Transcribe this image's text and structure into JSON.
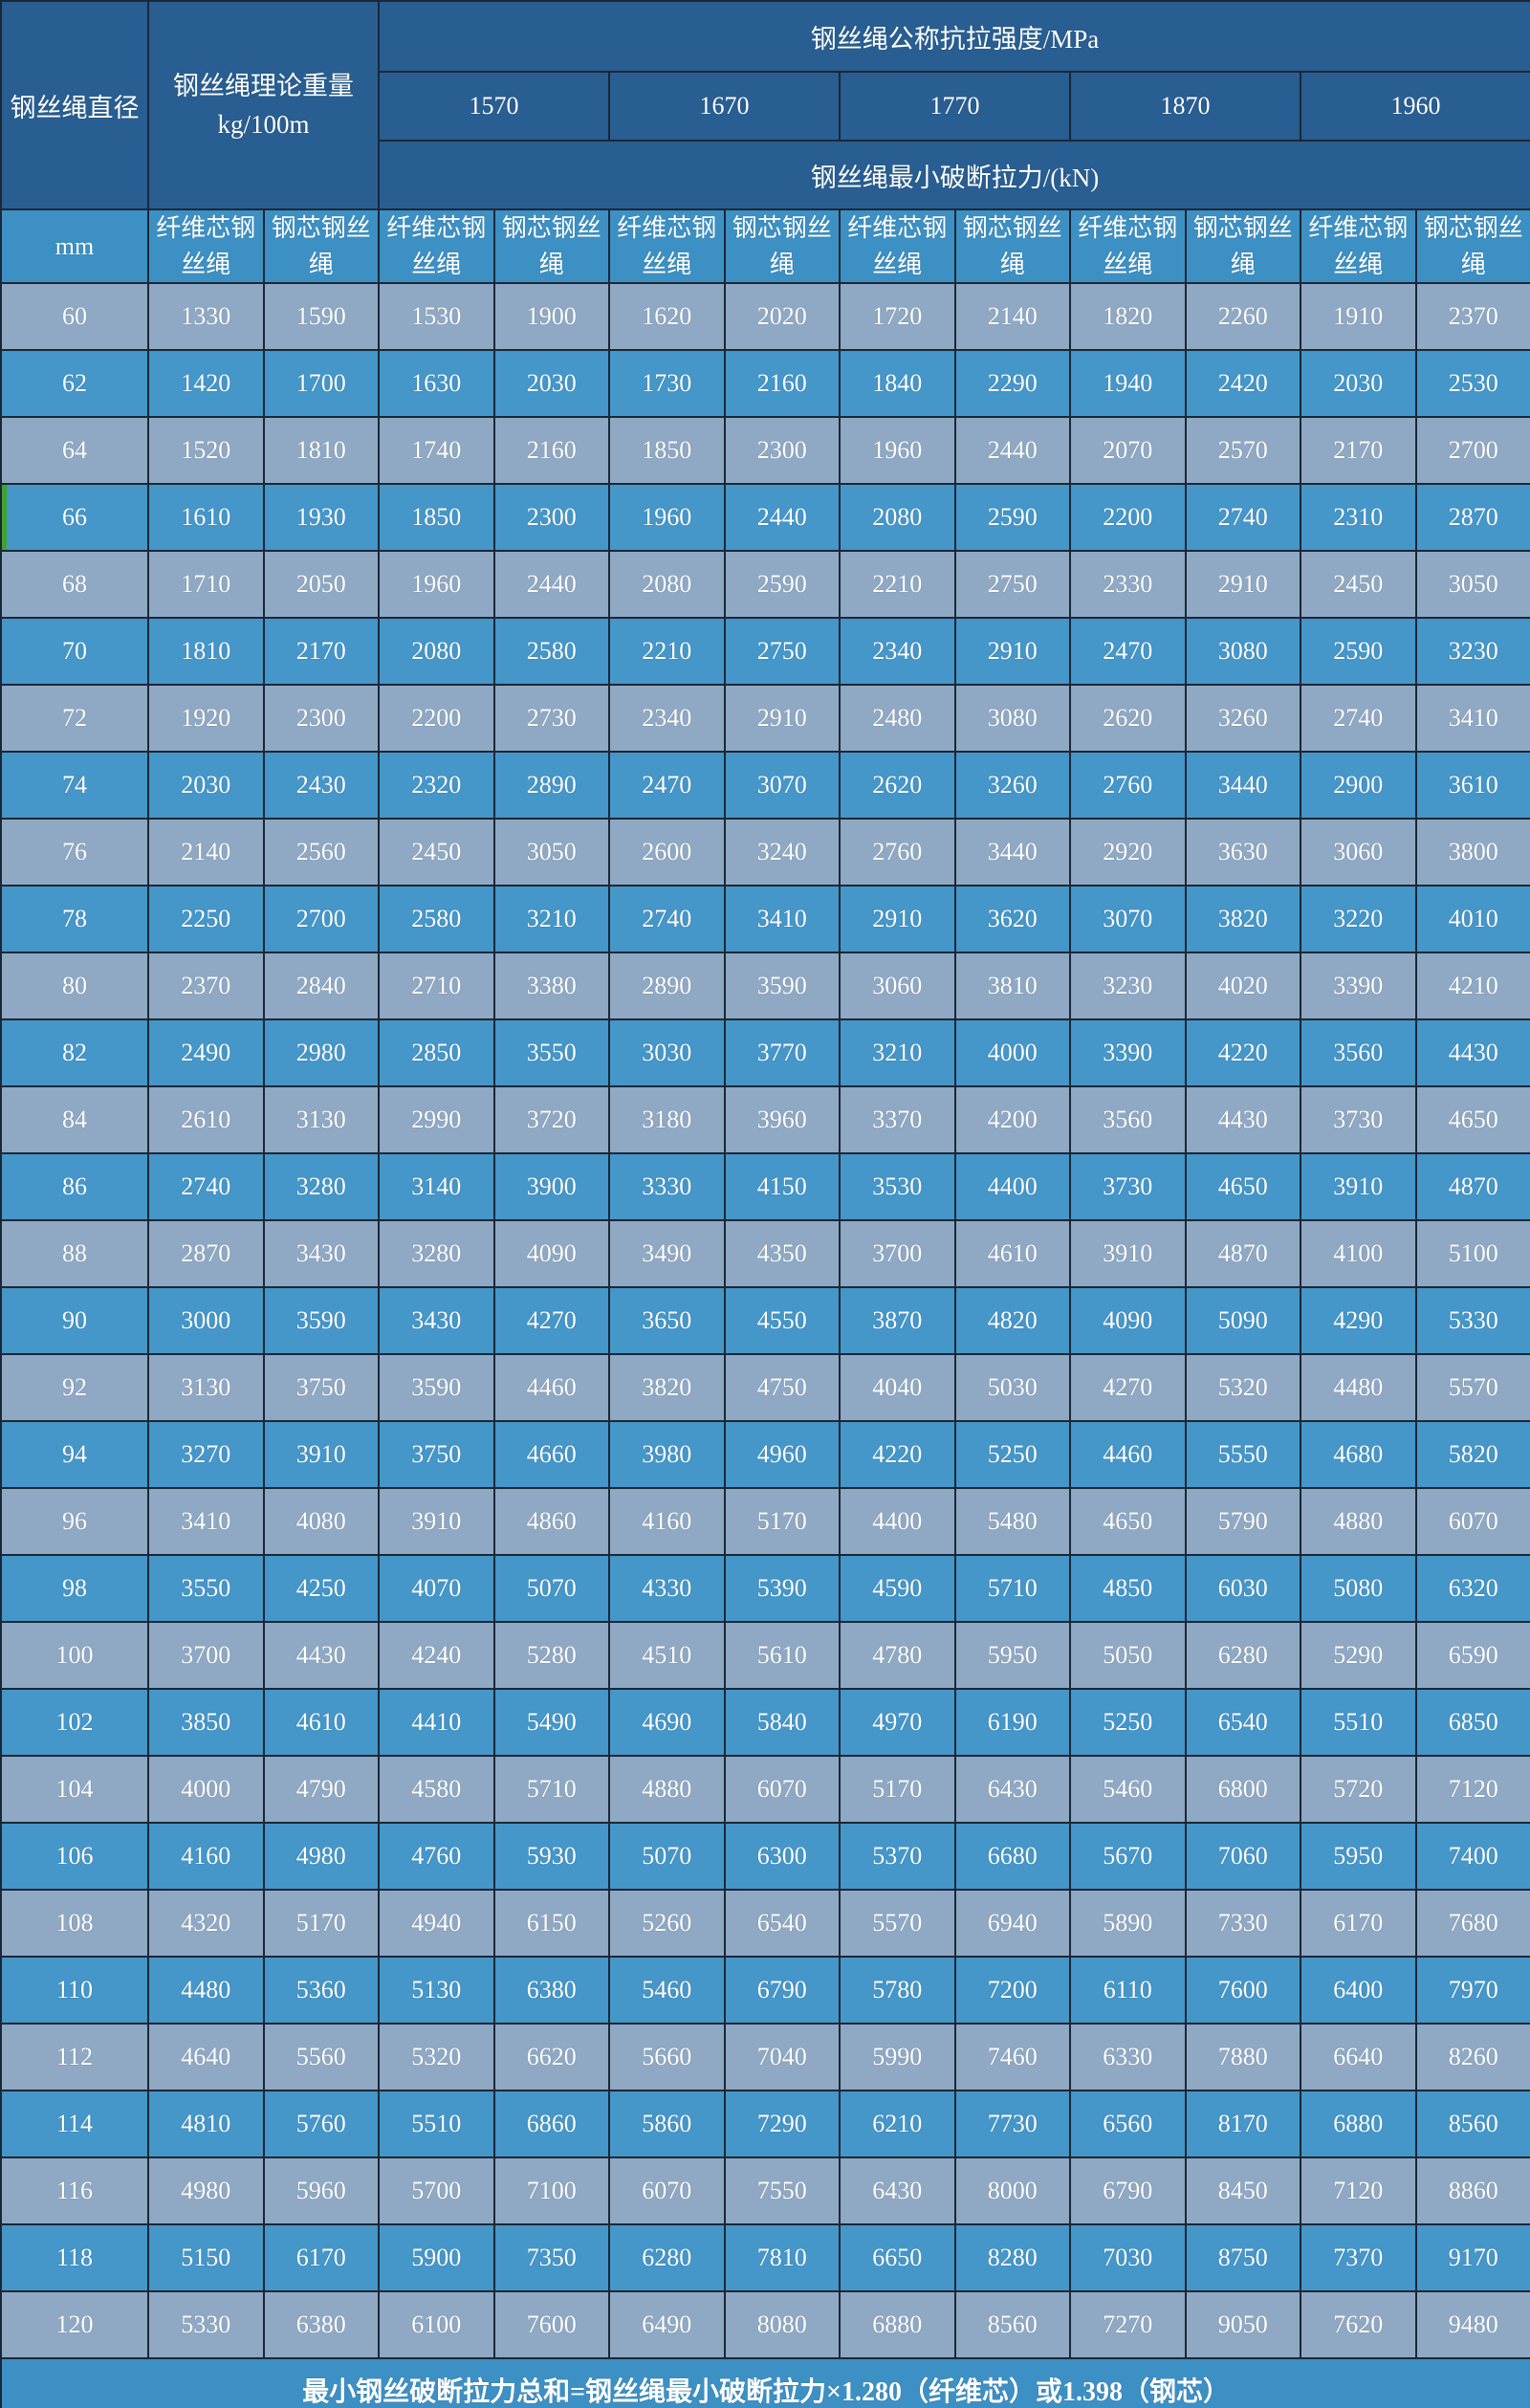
{
  "header": {
    "diameter_label": "钢丝绳直径",
    "diameter_unit": "mm",
    "weight_label": "钢丝绳理论重量",
    "weight_unit": "kg/100m",
    "strength_title": "钢丝绳公称抗拉强度/MPa",
    "strength_grades": [
      "1570",
      "1670",
      "1770",
      "1870",
      "1960"
    ],
    "breaking_title": "钢丝绳最小破断拉力/(kN)",
    "fiber_core_label": "纤维芯钢丝绳",
    "steel_core_label": "钢芯钢丝绳"
  },
  "table": {
    "rows": [
      {
        "d": "60",
        "v": [
          "1330",
          "1590",
          "1530",
          "1900",
          "1620",
          "2020",
          "1720",
          "2140",
          "1820",
          "2260",
          "1910",
          "2370"
        ]
      },
      {
        "d": "62",
        "v": [
          "1420",
          "1700",
          "1630",
          "2030",
          "1730",
          "2160",
          "1840",
          "2290",
          "1940",
          "2420",
          "2030",
          "2530"
        ]
      },
      {
        "d": "64",
        "v": [
          "1520",
          "1810",
          "1740",
          "2160",
          "1850",
          "2300",
          "1960",
          "2440",
          "2070",
          "2570",
          "2170",
          "2700"
        ]
      },
      {
        "d": "66",
        "mark": true,
        "v": [
          "1610",
          "1930",
          "1850",
          "2300",
          "1960",
          "2440",
          "2080",
          "2590",
          "2200",
          "2740",
          "2310",
          "2870"
        ]
      },
      {
        "d": "68",
        "v": [
          "1710",
          "2050",
          "1960",
          "2440",
          "2080",
          "2590",
          "2210",
          "2750",
          "2330",
          "2910",
          "2450",
          "3050"
        ]
      },
      {
        "d": "70",
        "v": [
          "1810",
          "2170",
          "2080",
          "2580",
          "2210",
          "2750",
          "2340",
          "2910",
          "2470",
          "3080",
          "2590",
          "3230"
        ]
      },
      {
        "d": "72",
        "v": [
          "1920",
          "2300",
          "2200",
          "2730",
          "2340",
          "2910",
          "2480",
          "3080",
          "2620",
          "3260",
          "2740",
          "3410"
        ]
      },
      {
        "d": "74",
        "v": [
          "2030",
          "2430",
          "2320",
          "2890",
          "2470",
          "3070",
          "2620",
          "3260",
          "2760",
          "3440",
          "2900",
          "3610"
        ]
      },
      {
        "d": "76",
        "v": [
          "2140",
          "2560",
          "2450",
          "3050",
          "2600",
          "3240",
          "2760",
          "3440",
          "2920",
          "3630",
          "3060",
          "3800"
        ]
      },
      {
        "d": "78",
        "v": [
          "2250",
          "2700",
          "2580",
          "3210",
          "2740",
          "3410",
          "2910",
          "3620",
          "3070",
          "3820",
          "3220",
          "4010"
        ]
      },
      {
        "d": "80",
        "v": [
          "2370",
          "2840",
          "2710",
          "3380",
          "2890",
          "3590",
          "3060",
          "3810",
          "3230",
          "4020",
          "3390",
          "4210"
        ]
      },
      {
        "d": "82",
        "v": [
          "2490",
          "2980",
          "2850",
          "3550",
          "3030",
          "3770",
          "3210",
          "4000",
          "3390",
          "4220",
          "3560",
          "4430"
        ]
      },
      {
        "d": "84",
        "v": [
          "2610",
          "3130",
          "2990",
          "3720",
          "3180",
          "3960",
          "3370",
          "4200",
          "3560",
          "4430",
          "3730",
          "4650"
        ]
      },
      {
        "d": "86",
        "v": [
          "2740",
          "3280",
          "3140",
          "3900",
          "3330",
          "4150",
          "3530",
          "4400",
          "3730",
          "4650",
          "3910",
          "4870"
        ]
      },
      {
        "d": "88",
        "v": [
          "2870",
          "3430",
          "3280",
          "4090",
          "3490",
          "4350",
          "3700",
          "4610",
          "3910",
          "4870",
          "4100",
          "5100"
        ]
      },
      {
        "d": "90",
        "v": [
          "3000",
          "3590",
          "3430",
          "4270",
          "3650",
          "4550",
          "3870",
          "4820",
          "4090",
          "5090",
          "4290",
          "5330"
        ]
      },
      {
        "d": "92",
        "v": [
          "3130",
          "3750",
          "3590",
          "4460",
          "3820",
          "4750",
          "4040",
          "5030",
          "4270",
          "5320",
          "4480",
          "5570"
        ]
      },
      {
        "d": "94",
        "v": [
          "3270",
          "3910",
          "3750",
          "4660",
          "3980",
          "4960",
          "4220",
          "5250",
          "4460",
          "5550",
          "4680",
          "5820"
        ]
      },
      {
        "d": "96",
        "v": [
          "3410",
          "4080",
          "3910",
          "4860",
          "4160",
          "5170",
          "4400",
          "5480",
          "4650",
          "5790",
          "4880",
          "6070"
        ]
      },
      {
        "d": "98",
        "v": [
          "3550",
          "4250",
          "4070",
          "5070",
          "4330",
          "5390",
          "4590",
          "5710",
          "4850",
          "6030",
          "5080",
          "6320"
        ]
      },
      {
        "d": "100",
        "v": [
          "3700",
          "4430",
          "4240",
          "5280",
          "4510",
          "5610",
          "4780",
          "5950",
          "5050",
          "6280",
          "5290",
          "6590"
        ]
      },
      {
        "d": "102",
        "v": [
          "3850",
          "4610",
          "4410",
          "5490",
          "4690",
          "5840",
          "4970",
          "6190",
          "5250",
          "6540",
          "5510",
          "6850"
        ]
      },
      {
        "d": "104",
        "v": [
          "4000",
          "4790",
          "4580",
          "5710",
          "4880",
          "6070",
          "5170",
          "6430",
          "5460",
          "6800",
          "5720",
          "7120"
        ]
      },
      {
        "d": "106",
        "v": [
          "4160",
          "4980",
          "4760",
          "5930",
          "5070",
          "6300",
          "5370",
          "6680",
          "5670",
          "7060",
          "5950",
          "7400"
        ]
      },
      {
        "d": "108",
        "v": [
          "4320",
          "5170",
          "4940",
          "6150",
          "5260",
          "6540",
          "5570",
          "6940",
          "5890",
          "7330",
          "6170",
          "7680"
        ]
      },
      {
        "d": "110",
        "v": [
          "4480",
          "5360",
          "5130",
          "6380",
          "5460",
          "6790",
          "5780",
          "7200",
          "6110",
          "7600",
          "6400",
          "7970"
        ]
      },
      {
        "d": "112",
        "v": [
          "4640",
          "5560",
          "5320",
          "6620",
          "5660",
          "7040",
          "5990",
          "7460",
          "6330",
          "7880",
          "6640",
          "8260"
        ]
      },
      {
        "d": "114",
        "v": [
          "4810",
          "5760",
          "5510",
          "6860",
          "5860",
          "7290",
          "6210",
          "7730",
          "6560",
          "8170",
          "6880",
          "8560"
        ]
      },
      {
        "d": "116",
        "v": [
          "4980",
          "5960",
          "5700",
          "7100",
          "6070",
          "7550",
          "6430",
          "8000",
          "6790",
          "8450",
          "7120",
          "8860"
        ]
      },
      {
        "d": "118",
        "v": [
          "5150",
          "6170",
          "5900",
          "7350",
          "6280",
          "7810",
          "6650",
          "8280",
          "7030",
          "8750",
          "7370",
          "9170"
        ]
      },
      {
        "d": "120",
        "v": [
          "5330",
          "6380",
          "6100",
          "7600",
          "6490",
          "8080",
          "6880",
          "8560",
          "7270",
          "9050",
          "7620",
          "9480"
        ]
      }
    ]
  },
  "footer": {
    "note": "最小钢丝破断拉力总和=钢丝绳最小破断拉力×1.280（纤维芯）或1.398（钢芯）"
  }
}
